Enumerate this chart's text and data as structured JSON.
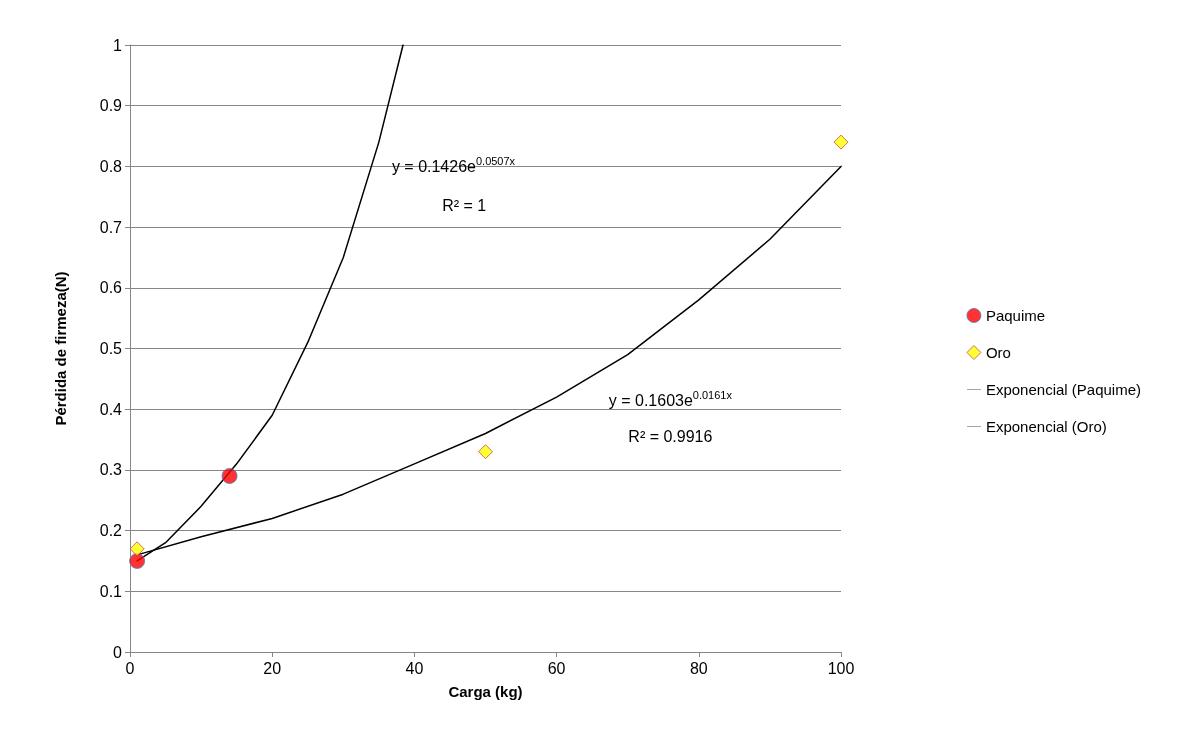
{
  "chart_data": {
    "type": "scatter",
    "xlabel": "Carga (kg)",
    "ylabel": "Pérdida de firmeza(N)",
    "xlim": [
      0,
      100
    ],
    "xticks": [
      0,
      20,
      40,
      60,
      80,
      100
    ],
    "ylim": [
      0,
      1
    ],
    "yticks": [
      0,
      0.1,
      0.2,
      0.3,
      0.4,
      0.5,
      0.6,
      0.7,
      0.8,
      0.9,
      1
    ],
    "grid": "y",
    "legend": "right",
    "series": [
      {
        "name": "Paquime",
        "marker": "circle",
        "color": "#ff0000",
        "x": [
          1,
          14
        ],
        "values": [
          0.15,
          0.29
        ]
      },
      {
        "name": "Oro",
        "marker": "diamond",
        "color": "#ffff00",
        "x": [
          1,
          50,
          100
        ],
        "values": [
          0.17,
          0.33,
          0.84
        ]
      },
      {
        "name": "Exponencial (Paquime)",
        "type": "line",
        "marker": "none",
        "line_style": "solid",
        "color": "#000000",
        "x": [
          1,
          5,
          10,
          15,
          20,
          25,
          30,
          35,
          38.4
        ],
        "values": [
          0.15,
          0.18,
          0.24,
          0.31,
          0.39,
          0.51,
          0.65,
          0.84,
          1.0
        ]
      },
      {
        "name": "Exponencial (Oro)",
        "type": "line",
        "marker": "none",
        "line_style": "solid",
        "color": "#000000",
        "x": [
          1,
          10,
          20,
          30,
          40,
          50,
          60,
          70,
          80,
          90,
          100
        ],
        "values": [
          0.16,
          0.19,
          0.22,
          0.26,
          0.31,
          0.36,
          0.42,
          0.49,
          0.58,
          0.68,
          0.8
        ]
      }
    ],
    "annotations": [
      "y = 0.1426e$^{0.0507x}$",
      "R² = 1",
      "y = 0.1603e$^{0.0161x}$",
      "R² = 0.9916"
    ]
  }
}
